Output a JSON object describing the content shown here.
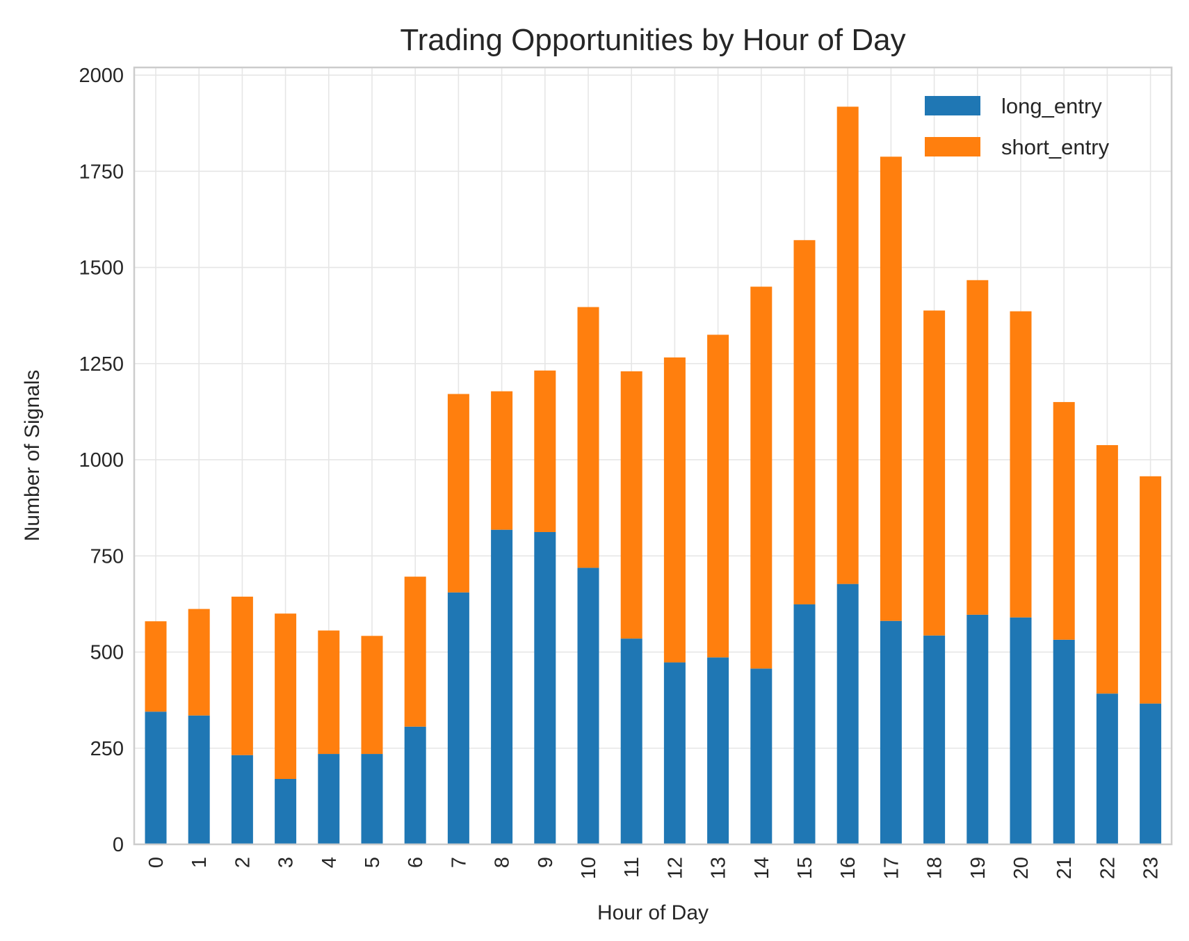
{
  "chart_data": {
    "type": "bar",
    "stacked": true,
    "title": "Trading Opportunities by Hour of Day",
    "xlabel": "Hour of Day",
    "ylabel": "Number of Signals",
    "ylim": [
      0,
      2020
    ],
    "yticks": [
      0,
      250,
      500,
      750,
      1000,
      1250,
      1500,
      1750,
      2000
    ],
    "categories": [
      "0",
      "1",
      "2",
      "3",
      "4",
      "5",
      "6",
      "7",
      "8",
      "9",
      "10",
      "11",
      "12",
      "13",
      "14",
      "15",
      "16",
      "17",
      "18",
      "19",
      "20",
      "21",
      "22",
      "23"
    ],
    "series": [
      {
        "name": "long_entry",
        "color": "#1f77b4",
        "values": [
          345,
          335,
          232,
          170,
          235,
          235,
          306,
          655,
          818,
          812,
          719,
          535,
          473,
          486,
          457,
          624,
          677,
          581,
          543,
          597,
          590,
          532,
          392,
          366
        ]
      },
      {
        "name": "short_entry",
        "color": "#ff7f0e",
        "values": [
          235,
          277,
          412,
          430,
          321,
          307,
          390,
          516,
          360,
          420,
          678,
          695,
          793,
          839,
          993,
          947,
          1241,
          1207,
          845,
          870,
          796,
          618,
          646,
          591
        ]
      }
    ],
    "grid": true,
    "legend_position": "top-right"
  }
}
